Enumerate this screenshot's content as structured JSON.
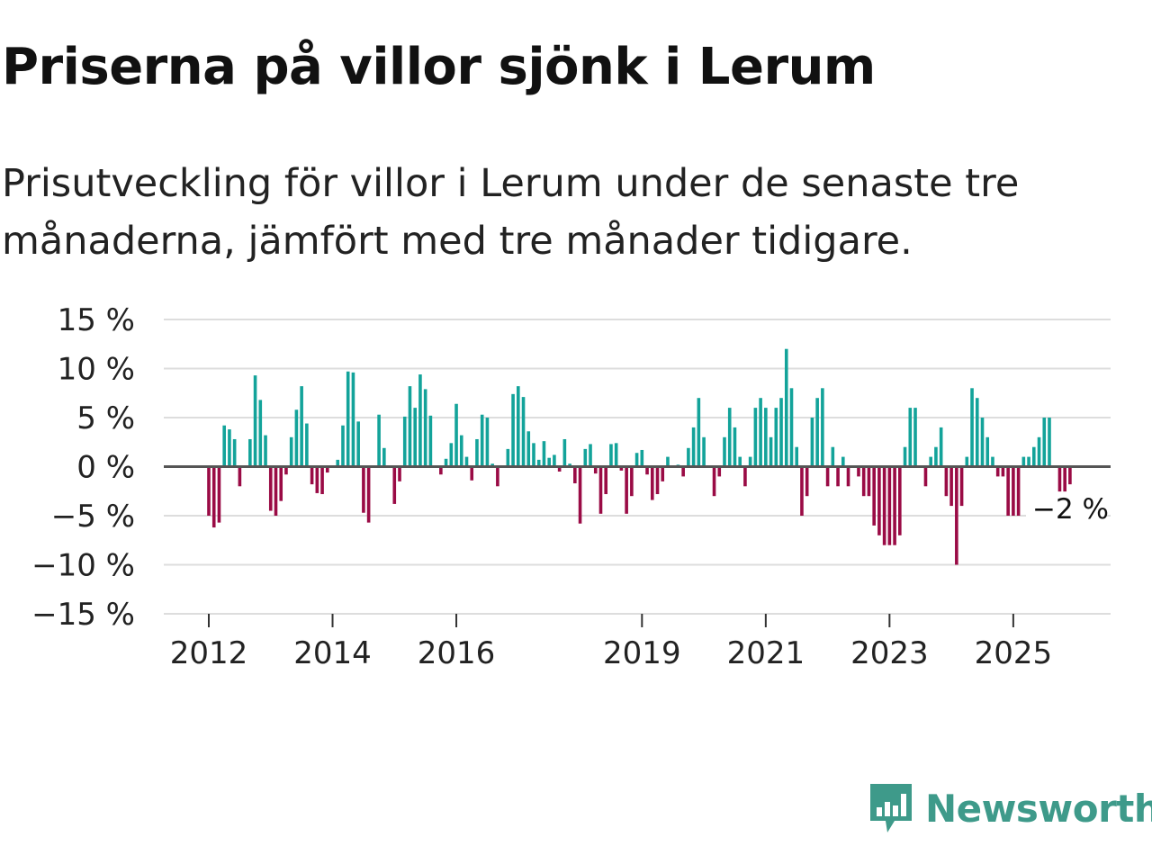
{
  "title": "Priserna på villor sjönk i Lerum",
  "subtitle": "Prisutveckling för villor i Lerum under de senaste tre månaderna, jämfört med tre månader tidigare.",
  "brand": {
    "name": "Newsworthy",
    "color": "#3e9a8a",
    "icon": "newsworthy-logo-icon"
  },
  "colors": {
    "positive": "#13a39a",
    "negative": "#9a0b45",
    "zero_line": "#555555",
    "grid": "#dddddd"
  },
  "chart_data": {
    "type": "bar",
    "title": "Priserna på villor sjönk i Lerum",
    "xlabel": "",
    "ylabel": "",
    "ylim": [
      -15,
      15
    ],
    "yticks": [
      15,
      10,
      5,
      0,
      -5,
      -10,
      -15
    ],
    "ytick_labels": [
      "15 %",
      "10 %",
      "5 %",
      "0 %",
      "−5 %",
      "−10 %",
      "−15 %"
    ],
    "x_start": "2012-01",
    "x_frequency": "monthly",
    "xticks": [
      {
        "label": "2012",
        "index": 0
      },
      {
        "label": "2014",
        "index": 24
      },
      {
        "label": "2016",
        "index": 48
      },
      {
        "label": "2019",
        "index": 84
      },
      {
        "label": "2021",
        "index": 108
      },
      {
        "label": "2023",
        "index": 132
      },
      {
        "label": "2025",
        "index": 156
      }
    ],
    "end_label": "−2 %",
    "values": [
      -5,
      -6.2,
      -5.7,
      4.2,
      3.8,
      2.8,
      -2,
      0,
      2.8,
      9.3,
      6.8,
      3.2,
      -4.5,
      -5,
      -3.5,
      -0.8,
      3,
      5.8,
      8.2,
      4.4,
      -1.8,
      -2.7,
      -2.8,
      -0.6,
      0,
      0.7,
      4.2,
      9.7,
      9.6,
      4.6,
      -4.7,
      -5.7,
      0,
      5.3,
      1.9,
      0,
      -3.8,
      -1.5,
      5.1,
      8.2,
      6,
      9.4,
      7.9,
      5.2,
      0,
      -0.8,
      0.8,
      2.4,
      6.4,
      3.2,
      1,
      -1.4,
      2.8,
      5.3,
      5,
      0.3,
      -2,
      0,
      1.8,
      7.4,
      8.2,
      7.1,
      3.6,
      2.4,
      0.7,
      2.6,
      0.9,
      1.2,
      -0.5,
      2.8,
      0.3,
      -1.7,
      -5.8,
      1.8,
      2.3,
      -0.7,
      -4.8,
      -2.8,
      2.3,
      2.4,
      -0.4,
      -4.8,
      -3,
      1.4,
      1.7,
      -0.8,
      -3.4,
      -2.8,
      -1.5,
      1,
      0,
      0.2,
      -1,
      1.9,
      4,
      7,
      3,
      0,
      -3,
      -1,
      3,
      6,
      4,
      1,
      -2,
      1,
      6,
      7,
      6,
      3,
      6,
      7,
      12,
      8,
      2,
      -5,
      -3,
      5,
      7,
      8,
      -2,
      2,
      -2,
      1,
      -2,
      0,
      -1,
      -3,
      -3,
      -6,
      -7,
      -8,
      -8,
      -8,
      -7,
      2,
      6,
      6,
      0,
      -2,
      1,
      2,
      4,
      -3,
      -4,
      -10,
      -4,
      1,
      8,
      7,
      5,
      3,
      1,
      -1,
      -1,
      -5,
      -5,
      -5,
      1,
      1,
      2,
      3,
      5,
      5,
      0,
      -2.6,
      -2.6,
      -1.8
    ]
  }
}
